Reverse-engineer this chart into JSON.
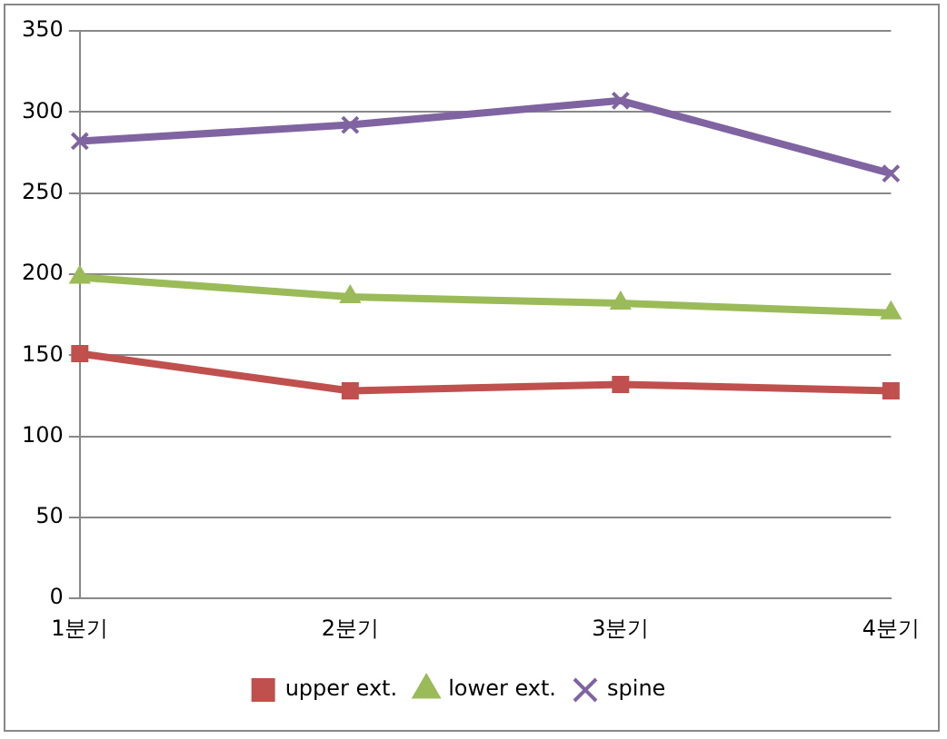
{
  "chart_data": {
    "type": "line",
    "categories": [
      "1분기",
      "2분기",
      "3분기",
      "4분기"
    ],
    "series": [
      {
        "name": "upper ext.",
        "color": "#c0504d",
        "marker": "square",
        "values": [
          151,
          128,
          132,
          128
        ]
      },
      {
        "name": "lower ext.",
        "color": "#9bbb59",
        "marker": "triangle",
        "values": [
          198,
          186,
          182,
          176
        ]
      },
      {
        "name": "spine",
        "color": "#8064a2",
        "marker": "cross",
        "values": [
          282,
          292,
          307,
          262
        ]
      }
    ],
    "ylim": [
      0,
      350
    ],
    "yticks": [
      0,
      50,
      100,
      150,
      200,
      250,
      300,
      350
    ],
    "grid": "y",
    "legend": "bottom"
  }
}
